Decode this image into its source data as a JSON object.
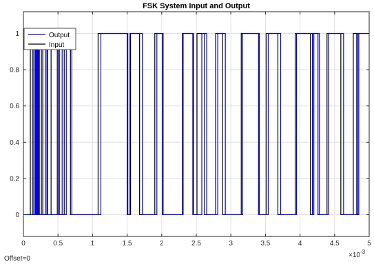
{
  "chart_data": {
    "type": "line",
    "title": "FSK System Input and Output",
    "xlabel": "",
    "ylabel": "",
    "xlim": [
      0,
      5
    ],
    "ylim": [
      -0.12,
      1.12
    ],
    "x_exponent_label": "×10",
    "x_exponent_power": "-3",
    "x_ticks": [
      0,
      0.5,
      1,
      1.5,
      2,
      2.5,
      3,
      3.5,
      4,
      4.5,
      5
    ],
    "x_tick_labels": [
      "0",
      "0.5",
      "1",
      "1.5",
      "2",
      "2.5",
      "3",
      "3.5",
      "4",
      "4.5",
      "5"
    ],
    "y_ticks": [
      0,
      0.2,
      0.4,
      0.6,
      0.8,
      1
    ],
    "y_tick_labels": [
      "0",
      "0.2",
      "0.4",
      "0.6",
      "0.8",
      "1"
    ],
    "grid": true,
    "legend_position": "top-left",
    "footer_text": "Offset=0",
    "series": [
      {
        "name": "Output",
        "color": "#0000ff",
        "steps": [
          [
            0,
            0
          ],
          [
            0.17,
            1
          ],
          [
            0.18,
            0
          ],
          [
            0.19,
            1
          ],
          [
            0.2,
            0
          ],
          [
            0.21,
            1
          ],
          [
            0.22,
            0
          ],
          [
            0.32,
            1
          ],
          [
            0.35,
            0
          ],
          [
            0.52,
            1
          ],
          [
            0.56,
            0
          ],
          [
            0.62,
            1
          ],
          [
            0.7,
            0
          ],
          [
            1.12,
            1
          ],
          [
            1.5,
            0
          ],
          [
            1.54,
            1
          ],
          [
            1.72,
            0
          ],
          [
            1.93,
            1
          ],
          [
            2.01,
            0
          ],
          [
            2.31,
            1
          ],
          [
            2.46,
            0
          ],
          [
            2.58,
            1
          ],
          [
            2.65,
            0
          ],
          [
            2.81,
            1
          ],
          [
            2.92,
            0
          ],
          [
            3.17,
            1
          ],
          [
            3.4,
            0
          ],
          [
            3.54,
            1
          ],
          [
            3.72,
            0
          ],
          [
            3.95,
            1
          ],
          [
            4.18,
            0
          ],
          [
            4.2,
            1
          ],
          [
            4.28,
            0
          ],
          [
            4.41,
            1
          ],
          [
            4.63,
            0
          ],
          [
            4.83,
            1
          ],
          [
            4.85,
            0
          ],
          [
            4.85,
            1
          ]
        ]
      },
      {
        "name": "Input",
        "color": "#000000",
        "steps": [
          [
            0,
            0
          ],
          [
            0.1,
            1
          ],
          [
            0.13,
            0
          ],
          [
            0.15,
            1
          ],
          [
            0.23,
            0
          ],
          [
            0.26,
            1
          ],
          [
            0.28,
            0
          ],
          [
            0.34,
            1
          ],
          [
            0.4,
            0
          ],
          [
            0.49,
            1
          ],
          [
            0.51,
            0
          ],
          [
            0.59,
            1
          ],
          [
            0.68,
            0
          ],
          [
            1.08,
            1
          ],
          [
            1.51,
            0
          ],
          [
            1.55,
            1
          ],
          [
            1.68,
            0
          ],
          [
            1.9,
            1
          ],
          [
            2.02,
            0
          ],
          [
            2.3,
            1
          ],
          [
            2.45,
            0
          ],
          [
            2.51,
            1
          ],
          [
            2.62,
            0
          ],
          [
            2.78,
            1
          ],
          [
            2.88,
            0
          ],
          [
            3.15,
            1
          ],
          [
            3.41,
            0
          ],
          [
            3.51,
            1
          ],
          [
            3.68,
            0
          ],
          [
            3.93,
            1
          ],
          [
            4.15,
            0
          ],
          [
            4.18,
            1
          ],
          [
            4.26,
            0
          ],
          [
            4.39,
            1
          ],
          [
            4.59,
            0
          ],
          [
            4.77,
            1
          ],
          [
            4.82,
            0
          ],
          [
            4.85,
            1
          ]
        ]
      }
    ]
  }
}
